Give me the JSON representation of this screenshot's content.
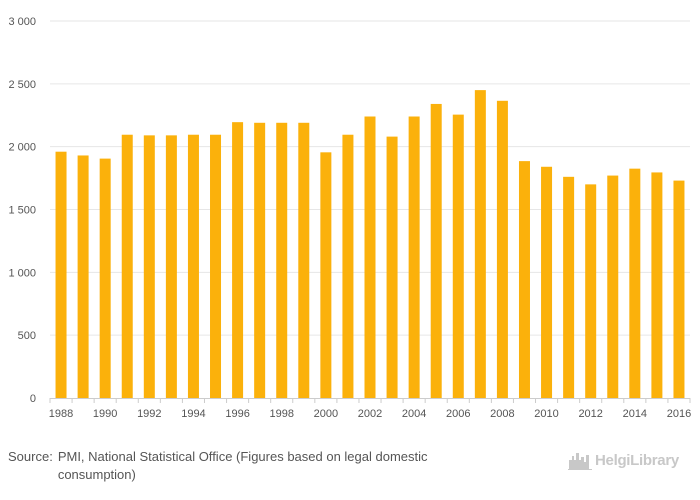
{
  "chart_data": {
    "type": "bar",
    "title": "",
    "xlabel": "",
    "ylabel": "",
    "categories": [
      "1988",
      "1989",
      "1990",
      "1991",
      "1992",
      "1993",
      "1994",
      "1995",
      "1996",
      "1997",
      "1998",
      "1999",
      "2000",
      "2001",
      "2002",
      "2003",
      "2004",
      "2005",
      "2006",
      "2007",
      "2008",
      "2009",
      "2010",
      "2011",
      "2012",
      "2013",
      "2014",
      "2015",
      "2016"
    ],
    "x_tick_labels": [
      "1988",
      "1990",
      "1992",
      "1994",
      "1996",
      "1998",
      "2000",
      "2002",
      "2004",
      "2006",
      "2008",
      "2010",
      "2012",
      "2014",
      "2016"
    ],
    "values": [
      1960,
      1930,
      1905,
      2095,
      2090,
      2090,
      2095,
      2095,
      2195,
      2190,
      2190,
      2190,
      1955,
      2095,
      2240,
      2080,
      2240,
      2340,
      2255,
      2450,
      2365,
      1885,
      1840,
      1760,
      1700,
      1770,
      1825,
      1795,
      1730
    ],
    "ylim": [
      0,
      3000
    ],
    "y_ticks": [
      0,
      500,
      1000,
      1500,
      2000,
      2500,
      3000
    ],
    "y_tick_labels": [
      "0",
      "500",
      "1 000",
      "1 500",
      "2 000",
      "2 500",
      "3 000"
    ],
    "grid": true,
    "bar_color": "#FBB10B"
  },
  "footer": {
    "source_label": "Source:",
    "source_text": "PMI, National Statistical Office (Figures based on legal domestic consumption)",
    "logo_text": "HelgiLibrary",
    "logo_icon": "city-skyline-icon"
  }
}
